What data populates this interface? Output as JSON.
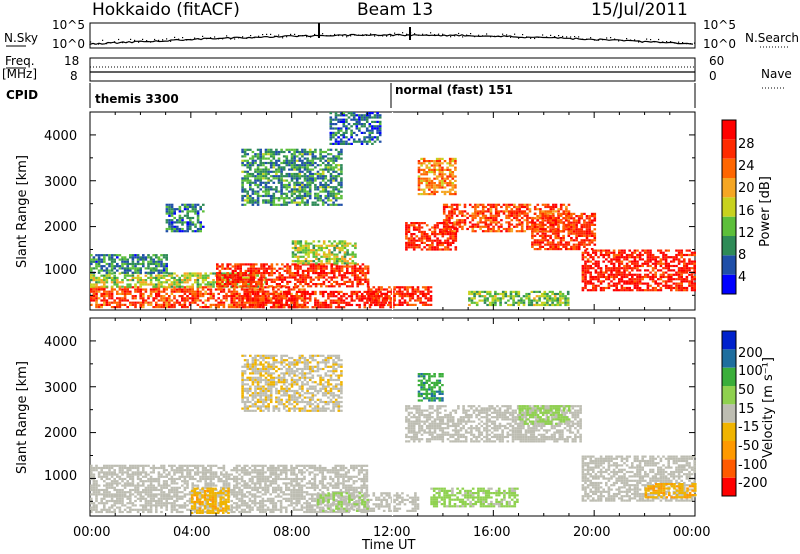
{
  "header": {
    "title_left": "Hokkaido (fitACF)",
    "title_center": "Beam 13",
    "title_right": "15/Jul/2011"
  },
  "top_panels": {
    "nsky_label": "N.Sky",
    "nsky_ticks": [
      "10^5",
      "10^0"
    ],
    "nsearch_label": "N.Search",
    "nsearch_ticks": [
      "10^5",
      "10^0"
    ],
    "freq_label": "Freq.",
    "freq_unit": "[MHz]",
    "freq_ticks": [
      "18",
      "8"
    ],
    "nave_label": "Nave",
    "nave_ticks": [
      "60",
      "0"
    ],
    "cpid_label": "CPID",
    "cpid_segments": [
      {
        "text": "themis 3300",
        "start_hour": 0,
        "end_hour": 12
      },
      {
        "text": "normal (fast) 151",
        "start_hour": 12,
        "end_hour": 24
      }
    ]
  },
  "colors": {
    "power_scale": [
      "#0000ff",
      "#1f4fa8",
      "#2e8b57",
      "#5cbf3a",
      "#c8d21e",
      "#f5a623",
      "#ff6600",
      "#ff2a00",
      "#ff0000"
    ],
    "velocity_scale": [
      "#ff0000",
      "#ff5a00",
      "#ff9900",
      "#f0b400",
      "#bdbdb2",
      "#8fd14f",
      "#3aae3a",
      "#1e6e9e",
      "#0022cc"
    ]
  },
  "chart_data": [
    {
      "type": "heatmap",
      "panel": "power",
      "xlabel": "Time UT",
      "ylabel": "Slant Range [km]",
      "xlim": [
        0,
        24
      ],
      "ylim": [
        180,
        4500
      ],
      "yticks": [
        "1000",
        "2000",
        "3000",
        "4000"
      ],
      "x_tick_labels": [
        "00:00",
        "04:00",
        "08:00",
        "12:00",
        "16:00",
        "20:00",
        "00:00"
      ],
      "colorbar_label": "Power [dB]",
      "colorbar_ticks": [
        "28",
        "24",
        "20",
        "16",
        "12",
        "8",
        "4"
      ],
      "colorbar_range": [
        0,
        30
      ],
      "regions": [
        {
          "t0": 0.0,
          "t1": 8.5,
          "r0": 250,
          "r1": 700,
          "value": 24
        },
        {
          "t0": 0.0,
          "t1": 7.0,
          "r0": 700,
          "r1": 1000,
          "value": 14
        },
        {
          "t0": 0.0,
          "t1": 3.0,
          "r0": 1000,
          "r1": 1400,
          "value": 8
        },
        {
          "t0": 5.0,
          "t1": 11.0,
          "r0": 700,
          "r1": 1200,
          "value": 26
        },
        {
          "t0": 6.0,
          "t1": 12.0,
          "r0": 250,
          "r1": 600,
          "value": 27
        },
        {
          "t0": 11.0,
          "t1": 13.5,
          "r0": 300,
          "r1": 700,
          "value": 26
        },
        {
          "t0": 8.0,
          "t1": 10.5,
          "r0": 1200,
          "r1": 1700,
          "value": 14
        },
        {
          "t0": 12.5,
          "t1": 14.5,
          "r0": 1500,
          "r1": 2100,
          "value": 26
        },
        {
          "t0": 14.0,
          "t1": 19.0,
          "r0": 1900,
          "r1": 2500,
          "value": 24
        },
        {
          "t0": 17.5,
          "t1": 20.0,
          "r0": 1500,
          "r1": 2300,
          "value": 25
        },
        {
          "t0": 19.5,
          "t1": 24.0,
          "r0": 600,
          "r1": 1500,
          "value": 27
        },
        {
          "t0": 15.0,
          "t1": 19.0,
          "r0": 300,
          "r1": 600,
          "value": 12
        },
        {
          "t0": 6.0,
          "t1": 10.0,
          "r0": 2500,
          "r1": 3700,
          "value": 9
        },
        {
          "t0": 9.5,
          "t1": 11.5,
          "r0": 3800,
          "r1": 4500,
          "value": 6
        },
        {
          "t0": 13.0,
          "t1": 14.5,
          "r0": 2700,
          "r1": 3500,
          "value": 20
        },
        {
          "t0": 3.0,
          "t1": 4.5,
          "r0": 1900,
          "r1": 2500,
          "value": 7
        }
      ]
    },
    {
      "type": "heatmap",
      "panel": "velocity",
      "xlabel": "Time UT",
      "ylabel": "Slant Range [km]",
      "xlim": [
        0,
        24
      ],
      "ylim": [
        180,
        4500
      ],
      "yticks": [
        "1000",
        "2000",
        "3000",
        "4000"
      ],
      "x_tick_labels": [
        "00:00",
        "04:00",
        "08:00",
        "12:00",
        "16:00",
        "20:00",
        "00:00"
      ],
      "colorbar_label": "Velocity [m s⁻¹]",
      "colorbar_ticks": [
        "200",
        "100",
        "50",
        "15",
        "-15",
        "-50",
        "-100",
        "-200"
      ],
      "colorbar_range": [
        -250,
        250
      ],
      "regions": [
        {
          "t0": 0.0,
          "t1": 11.0,
          "r0": 250,
          "r1": 1300,
          "value": 0
        },
        {
          "t0": 11.0,
          "t1": 13.0,
          "r0": 300,
          "r1": 700,
          "value": 0
        },
        {
          "t0": 12.5,
          "t1": 19.5,
          "r0": 1800,
          "r1": 2600,
          "value": 0
        },
        {
          "t0": 19.5,
          "t1": 24.0,
          "r0": 500,
          "r1": 1500,
          "value": 0
        },
        {
          "t0": 4.0,
          "t1": 5.5,
          "r0": 250,
          "r1": 800,
          "value": -70
        },
        {
          "t0": 13.0,
          "t1": 14.0,
          "r0": 2700,
          "r1": 3300,
          "value": 130
        },
        {
          "t0": 6.0,
          "t1": 10.0,
          "r0": 2500,
          "r1": 3700,
          "value": -20
        },
        {
          "t0": 13.5,
          "t1": 17.0,
          "r0": 400,
          "r1": 800,
          "value": 40
        },
        {
          "t0": 9.0,
          "t1": 11.0,
          "r0": 300,
          "r1": 700,
          "value": 25
        },
        {
          "t0": 17.0,
          "t1": 19.0,
          "r0": 2200,
          "r1": 2600,
          "value": 40
        },
        {
          "t0": 22.0,
          "t1": 24.0,
          "r0": 600,
          "r1": 900,
          "value": -80
        }
      ]
    }
  ]
}
